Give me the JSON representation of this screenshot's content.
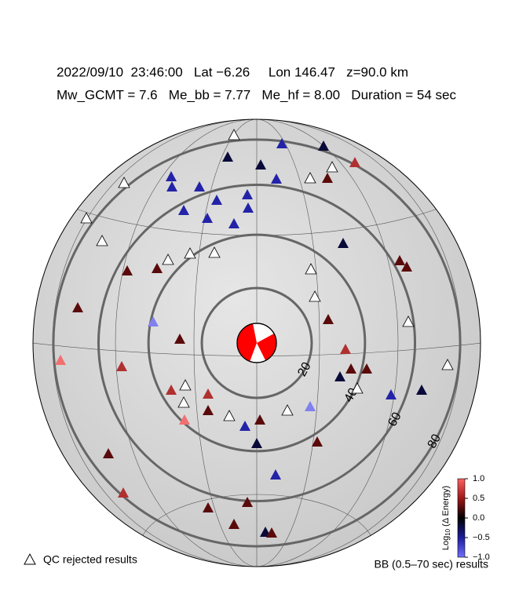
{
  "header": {
    "line1": "2022/09/10  23:46:00   Lat −6.26     Lon 146.47   z=90.0 km",
    "line2": "Mw_GCMT = 7.6   Me_bb = 7.77   Me_hf = 8.00   Duration = 54 sec"
  },
  "rings": {
    "values": [
      20,
      40,
      60,
      80
    ]
  },
  "colorbar": {
    "lim": [
      -1,
      1
    ],
    "ticks": [
      {
        "value": 1,
        "label": "1.0"
      },
      {
        "value": 0.5,
        "label": "0.5"
      },
      {
        "value": 0,
        "label": "0.0"
      },
      {
        "value": -0.5,
        "label": "−0.5"
      },
      {
        "value": -1,
        "label": "−1.0"
      }
    ],
    "label": {
      "base": "Log",
      "sub": "10",
      "rest": " (Δ Energy)"
    }
  },
  "legend": {
    "qc": "QC rejected results",
    "bb": "BB (0.5–70 sec) results"
  }
}
